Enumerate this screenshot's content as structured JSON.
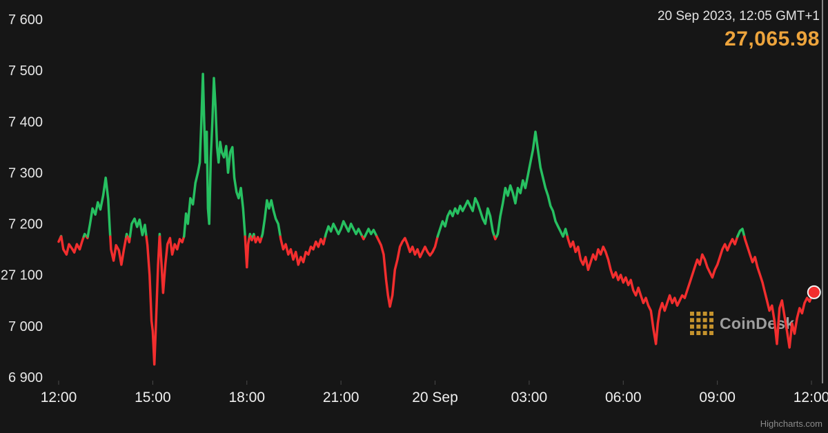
{
  "header": {
    "timestamp": "20 Sep 2023, 12:05 GMT+1",
    "price": "27,065.98",
    "price_color": "#eda43c"
  },
  "watermark": {
    "brand": "CoinDesk"
  },
  "credits": {
    "label": "Highcharts.com"
  },
  "chart_data": {
    "type": "line",
    "title": "",
    "xlabel": "",
    "ylabel": "",
    "grid": false,
    "legend": false,
    "ylim": [
      26900,
      27600
    ],
    "xlim": [
      0,
      24.35
    ],
    "x_unit": "hours after 12:00 (19 Sep) through 12:05 (20 Sep)",
    "threshold": 27175,
    "colors": {
      "up": "#27c061",
      "down": "#f22e2e",
      "background": "#161616",
      "accent_gold": "#eda43c",
      "crosshair": "#a9a9a9"
    },
    "y_ticks": [
      {
        "value": 27600,
        "label": "7 600"
      },
      {
        "value": 27500,
        "label": "7 500"
      },
      {
        "value": 27400,
        "label": "7 400"
      },
      {
        "value": 27300,
        "label": "7 300"
      },
      {
        "value": 27200,
        "label": "7 200"
      },
      {
        "value": 27100,
        "label": "27 100"
      },
      {
        "value": 27000,
        "label": "7 000"
      },
      {
        "value": 26900,
        "label": "6 900"
      }
    ],
    "x_ticks": [
      {
        "t": 0,
        "label": "12:00"
      },
      {
        "t": 3,
        "label": "15:00"
      },
      {
        "t": 6,
        "label": "18:00"
      },
      {
        "t": 9,
        "label": "21:00"
      },
      {
        "t": 12,
        "label": "20 Sep"
      },
      {
        "t": 15,
        "label": "03:00"
      },
      {
        "t": 18,
        "label": "06:00"
      },
      {
        "t": 21,
        "label": "09:00"
      },
      {
        "t": 24,
        "label": "12:00"
      }
    ],
    "last_point": {
      "t": 24.083,
      "price": 27065.98
    },
    "points": [
      [
        0,
        27165
      ],
      [
        0.08,
        27176
      ],
      [
        0.15,
        27150
      ],
      [
        0.25,
        27140
      ],
      [
        0.33,
        27160
      ],
      [
        0.42,
        27152
      ],
      [
        0.5,
        27144
      ],
      [
        0.58,
        27160
      ],
      [
        0.67,
        27150
      ],
      [
        0.75,
        27166
      ],
      [
        0.83,
        27180
      ],
      [
        0.92,
        27172
      ],
      [
        1,
        27200
      ],
      [
        1.08,
        27230
      ],
      [
        1.17,
        27218
      ],
      [
        1.25,
        27242
      ],
      [
        1.33,
        27228
      ],
      [
        1.42,
        27256
      ],
      [
        1.5,
        27290
      ],
      [
        1.58,
        27248
      ],
      [
        1.63,
        27190
      ],
      [
        1.67,
        27150
      ],
      [
        1.75,
        27128
      ],
      [
        1.83,
        27158
      ],
      [
        1.92,
        27148
      ],
      [
        2,
        27120
      ],
      [
        2.08,
        27150
      ],
      [
        2.17,
        27180
      ],
      [
        2.25,
        27164
      ],
      [
        2.33,
        27200
      ],
      [
        2.42,
        27210
      ],
      [
        2.5,
        27194
      ],
      [
        2.58,
        27208
      ],
      [
        2.67,
        27178
      ],
      [
        2.75,
        27198
      ],
      [
        2.83,
        27158
      ],
      [
        2.9,
        27100
      ],
      [
        2.96,
        27010
      ],
      [
        3,
        26990
      ],
      [
        3.05,
        26925
      ],
      [
        3.1,
        27000
      ],
      [
        3.17,
        27120
      ],
      [
        3.22,
        27180
      ],
      [
        3.28,
        27120
      ],
      [
        3.33,
        27065
      ],
      [
        3.4,
        27120
      ],
      [
        3.47,
        27160
      ],
      [
        3.55,
        27172
      ],
      [
        3.62,
        27140
      ],
      [
        3.7,
        27160
      ],
      [
        3.78,
        27150
      ],
      [
        3.86,
        27170
      ],
      [
        3.94,
        27164
      ],
      [
        4,
        27176
      ],
      [
        4.06,
        27220
      ],
      [
        4.12,
        27200
      ],
      [
        4.2,
        27250
      ],
      [
        4.28,
        27238
      ],
      [
        4.36,
        27280
      ],
      [
        4.44,
        27300
      ],
      [
        4.5,
        27320
      ],
      [
        4.55,
        27400
      ],
      [
        4.6,
        27493
      ],
      [
        4.64,
        27400
      ],
      [
        4.68,
        27320
      ],
      [
        4.72,
        27380
      ],
      [
        4.76,
        27230
      ],
      [
        4.8,
        27200
      ],
      [
        4.85,
        27330
      ],
      [
        4.9,
        27400
      ],
      [
        4.95,
        27485
      ],
      [
        5,
        27430
      ],
      [
        5.05,
        27350
      ],
      [
        5.1,
        27320
      ],
      [
        5.15,
        27360
      ],
      [
        5.2,
        27340
      ],
      [
        5.27,
        27330
      ],
      [
        5.34,
        27352
      ],
      [
        5.4,
        27300
      ],
      [
        5.47,
        27340
      ],
      [
        5.54,
        27350
      ],
      [
        5.6,
        27290
      ],
      [
        5.67,
        27262
      ],
      [
        5.74,
        27250
      ],
      [
        5.81,
        27270
      ],
      [
        5.88,
        27230
      ],
      [
        5.94,
        27180
      ],
      [
        6,
        27115
      ],
      [
        6.04,
        27160
      ],
      [
        6.1,
        27180
      ],
      [
        6.16,
        27168
      ],
      [
        6.22,
        27180
      ],
      [
        6.28,
        27164
      ],
      [
        6.35,
        27174
      ],
      [
        6.42,
        27164
      ],
      [
        6.5,
        27180
      ],
      [
        6.57,
        27210
      ],
      [
        6.64,
        27246
      ],
      [
        6.71,
        27230
      ],
      [
        6.78,
        27246
      ],
      [
        6.85,
        27226
      ],
      [
        6.92,
        27210
      ],
      [
        7,
        27200
      ],
      [
        7.08,
        27170
      ],
      [
        7.16,
        27150
      ],
      [
        7.24,
        27160
      ],
      [
        7.32,
        27140
      ],
      [
        7.4,
        27150
      ],
      [
        7.48,
        27130
      ],
      [
        7.56,
        27145
      ],
      [
        7.64,
        27120
      ],
      [
        7.72,
        27135
      ],
      [
        7.8,
        27125
      ],
      [
        7.88,
        27145
      ],
      [
        7.96,
        27140
      ],
      [
        8.04,
        27155
      ],
      [
        8.12,
        27150
      ],
      [
        8.2,
        27165
      ],
      [
        8.28,
        27155
      ],
      [
        8.36,
        27170
      ],
      [
        8.44,
        27160
      ],
      [
        8.52,
        27180
      ],
      [
        8.6,
        27195
      ],
      [
        8.68,
        27185
      ],
      [
        8.76,
        27200
      ],
      [
        8.84,
        27190
      ],
      [
        8.92,
        27180
      ],
      [
        9,
        27190
      ],
      [
        9.08,
        27205
      ],
      [
        9.16,
        27195
      ],
      [
        9.24,
        27185
      ],
      [
        9.32,
        27200
      ],
      [
        9.4,
        27190
      ],
      [
        9.48,
        27180
      ],
      [
        9.56,
        27190
      ],
      [
        9.64,
        27180
      ],
      [
        9.72,
        27170
      ],
      [
        9.8,
        27180
      ],
      [
        9.88,
        27190
      ],
      [
        9.96,
        27180
      ],
      [
        10.04,
        27188
      ],
      [
        10.12,
        27178
      ],
      [
        10.2,
        27168
      ],
      [
        10.28,
        27158
      ],
      [
        10.36,
        27140
      ],
      [
        10.44,
        27090
      ],
      [
        10.5,
        27060
      ],
      [
        10.56,
        27038
      ],
      [
        10.64,
        27060
      ],
      [
        10.72,
        27110
      ],
      [
        10.8,
        27130
      ],
      [
        10.88,
        27155
      ],
      [
        10.96,
        27165
      ],
      [
        11.04,
        27172
      ],
      [
        11.12,
        27160
      ],
      [
        11.2,
        27145
      ],
      [
        11.28,
        27155
      ],
      [
        11.36,
        27140
      ],
      [
        11.44,
        27150
      ],
      [
        11.52,
        27135
      ],
      [
        11.6,
        27145
      ],
      [
        11.68,
        27155
      ],
      [
        11.76,
        27145
      ],
      [
        11.84,
        27138
      ],
      [
        11.92,
        27145
      ],
      [
        12,
        27155
      ],
      [
        12.08,
        27175
      ],
      [
        12.16,
        27190
      ],
      [
        12.24,
        27205
      ],
      [
        12.32,
        27195
      ],
      [
        12.4,
        27215
      ],
      [
        12.48,
        27225
      ],
      [
        12.56,
        27215
      ],
      [
        12.64,
        27230
      ],
      [
        12.72,
        27220
      ],
      [
        12.8,
        27235
      ],
      [
        12.88,
        27225
      ],
      [
        12.96,
        27235
      ],
      [
        13.04,
        27245
      ],
      [
        13.12,
        27235
      ],
      [
        13.2,
        27225
      ],
      [
        13.28,
        27250
      ],
      [
        13.36,
        27240
      ],
      [
        13.44,
        27225
      ],
      [
        13.52,
        27210
      ],
      [
        13.6,
        27200
      ],
      [
        13.68,
        27230
      ],
      [
        13.76,
        27215
      ],
      [
        13.84,
        27185
      ],
      [
        13.92,
        27170
      ],
      [
        14,
        27180
      ],
      [
        14.08,
        27215
      ],
      [
        14.16,
        27240
      ],
      [
        14.24,
        27270
      ],
      [
        14.32,
        27255
      ],
      [
        14.4,
        27275
      ],
      [
        14.48,
        27260
      ],
      [
        14.56,
        27240
      ],
      [
        14.64,
        27270
      ],
      [
        14.72,
        27260
      ],
      [
        14.8,
        27285
      ],
      [
        14.88,
        27270
      ],
      [
        14.96,
        27295
      ],
      [
        15.04,
        27320
      ],
      [
        15.12,
        27345
      ],
      [
        15.2,
        27380
      ],
      [
        15.28,
        27345
      ],
      [
        15.36,
        27310
      ],
      [
        15.44,
        27290
      ],
      [
        15.52,
        27270
      ],
      [
        15.6,
        27255
      ],
      [
        15.68,
        27235
      ],
      [
        15.76,
        27225
      ],
      [
        15.84,
        27205
      ],
      [
        15.92,
        27195
      ],
      [
        16,
        27185
      ],
      [
        16.08,
        27175
      ],
      [
        16.16,
        27190
      ],
      [
        16.24,
        27170
      ],
      [
        16.32,
        27155
      ],
      [
        16.4,
        27165
      ],
      [
        16.48,
        27145
      ],
      [
        16.56,
        27155
      ],
      [
        16.64,
        27130
      ],
      [
        16.72,
        27120
      ],
      [
        16.8,
        27135
      ],
      [
        16.88,
        27110
      ],
      [
        16.96,
        27125
      ],
      [
        17.04,
        27140
      ],
      [
        17.12,
        27130
      ],
      [
        17.2,
        27150
      ],
      [
        17.28,
        27140
      ],
      [
        17.36,
        27155
      ],
      [
        17.44,
        27145
      ],
      [
        17.52,
        27130
      ],
      [
        17.6,
        27110
      ],
      [
        17.68,
        27095
      ],
      [
        17.76,
        27105
      ],
      [
        17.84,
        27090
      ],
      [
        17.92,
        27100
      ],
      [
        18,
        27085
      ],
      [
        18.08,
        27095
      ],
      [
        18.16,
        27080
      ],
      [
        18.24,
        27090
      ],
      [
        18.32,
        27070
      ],
      [
        18.4,
        27060
      ],
      [
        18.48,
        27075
      ],
      [
        18.56,
        27060
      ],
      [
        18.64,
        27045
      ],
      [
        18.72,
        27055
      ],
      [
        18.8,
        27040
      ],
      [
        18.88,
        27030
      ],
      [
        18.96,
        26995
      ],
      [
        19.04,
        26965
      ],
      [
        19.1,
        27005
      ],
      [
        19.16,
        27030
      ],
      [
        19.24,
        27045
      ],
      [
        19.32,
        27030
      ],
      [
        19.4,
        27045
      ],
      [
        19.48,
        27060
      ],
      [
        19.56,
        27045
      ],
      [
        19.64,
        27055
      ],
      [
        19.72,
        27040
      ],
      [
        19.8,
        27050
      ],
      [
        19.88,
        27060
      ],
      [
        19.96,
        27055
      ],
      [
        20.04,
        27070
      ],
      [
        20.12,
        27085
      ],
      [
        20.2,
        27100
      ],
      [
        20.28,
        27115
      ],
      [
        20.36,
        27130
      ],
      [
        20.44,
        27120
      ],
      [
        20.52,
        27140
      ],
      [
        20.6,
        27130
      ],
      [
        20.68,
        27115
      ],
      [
        20.76,
        27105
      ],
      [
        20.84,
        27095
      ],
      [
        20.92,
        27110
      ],
      [
        21,
        27120
      ],
      [
        21.08,
        27135
      ],
      [
        21.16,
        27150
      ],
      [
        21.24,
        27160
      ],
      [
        21.32,
        27148
      ],
      [
        21.4,
        27160
      ],
      [
        21.48,
        27170
      ],
      [
        21.56,
        27160
      ],
      [
        21.64,
        27175
      ],
      [
        21.72,
        27186
      ],
      [
        21.8,
        27190
      ],
      [
        21.88,
        27170
      ],
      [
        21.96,
        27155
      ],
      [
        22.04,
        27140
      ],
      [
        22.12,
        27125
      ],
      [
        22.2,
        27135
      ],
      [
        22.28,
        27115
      ],
      [
        22.36,
        27100
      ],
      [
        22.44,
        27085
      ],
      [
        22.5,
        27070
      ],
      [
        22.58,
        27050
      ],
      [
        22.66,
        27030
      ],
      [
        22.74,
        27040
      ],
      [
        22.82,
        27010
      ],
      [
        22.9,
        26965
      ],
      [
        22.98,
        27035
      ],
      [
        23.06,
        27050
      ],
      [
        23.14,
        27020
      ],
      [
        23.22,
        26990
      ],
      [
        23.3,
        26958
      ],
      [
        23.38,
        27005
      ],
      [
        23.46,
        26985
      ],
      [
        23.54,
        27015
      ],
      [
        23.62,
        27035
      ],
      [
        23.7,
        27025
      ],
      [
        23.78,
        27045
      ],
      [
        23.86,
        27055
      ],
      [
        23.94,
        27048
      ],
      [
        24.02,
        27060
      ],
      [
        24.083,
        27065.98
      ]
    ]
  }
}
